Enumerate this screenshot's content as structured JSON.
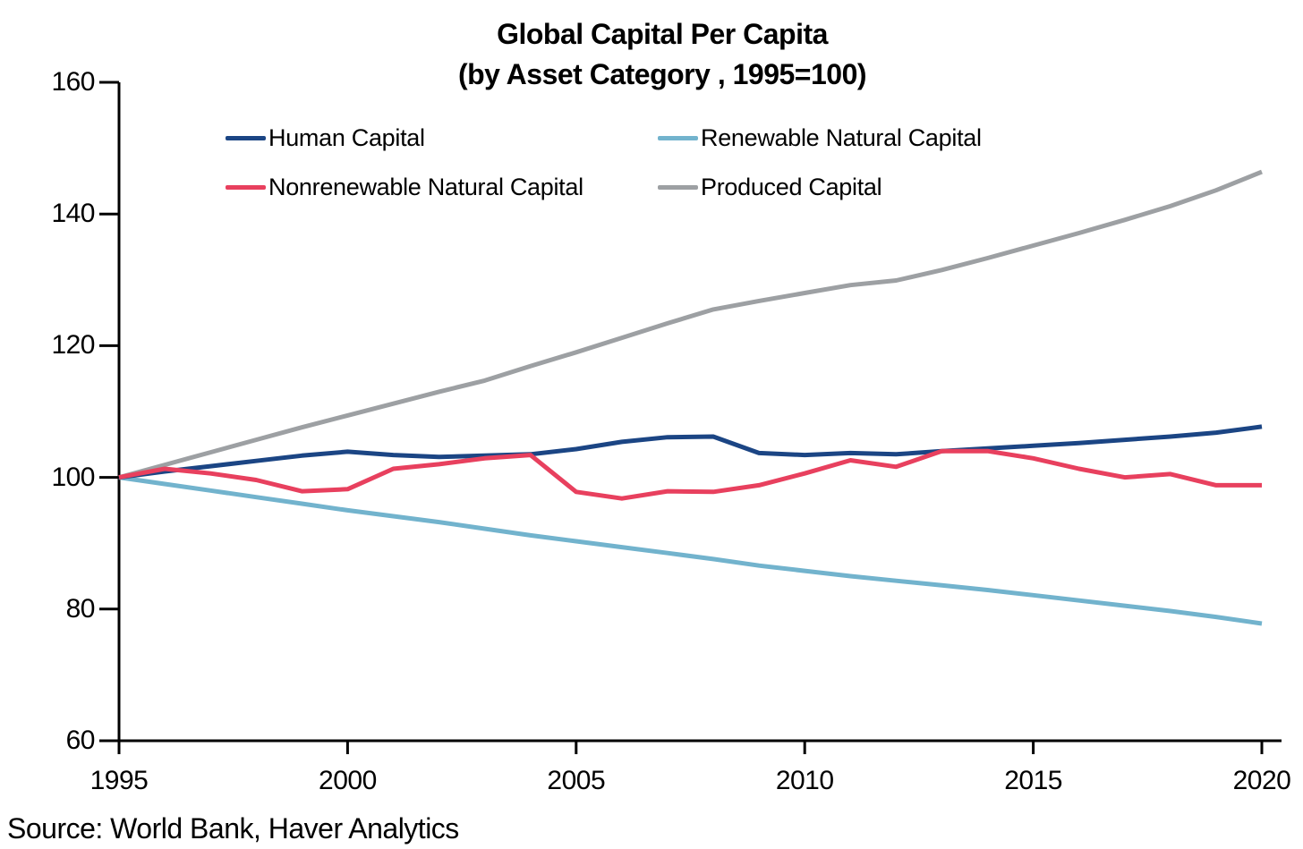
{
  "title": {
    "line1": "Global Capital Per Capita",
    "line2": "(by Asset Category , 1995=100)"
  },
  "source": "Source: World Bank, Haver Analytics",
  "chart_data": {
    "type": "line",
    "title": "Global Capital Per Capita (by Asset Category , 1995=100)",
    "xlabel": "",
    "ylabel": "",
    "xlim": [
      1995,
      2020
    ],
    "ylim": [
      60,
      160
    ],
    "x_ticks": [
      1995,
      2000,
      2005,
      2010,
      2015,
      2020
    ],
    "y_ticks": [
      60,
      80,
      100,
      120,
      140,
      160
    ],
    "grid": false,
    "legend_position": "top",
    "axis_color": "#000000",
    "x": [
      1995,
      1996,
      1997,
      1998,
      1999,
      2000,
      2001,
      2002,
      2003,
      2004,
      2005,
      2006,
      2007,
      2008,
      2009,
      2010,
      2011,
      2012,
      2013,
      2014,
      2015,
      2016,
      2017,
      2018,
      2019,
      2020
    ],
    "series": [
      {
        "name": "Human Capital",
        "color": "#1B4584",
        "values": [
          100,
          100.9,
          101.7,
          102.5,
          103.3,
          103.9,
          103.4,
          103.1,
          103.3,
          103.5,
          104.3,
          105.4,
          106.1,
          106.2,
          103.7,
          103.4,
          103.7,
          103.5,
          104.0,
          104.4,
          104.8,
          105.2,
          105.7,
          106.2,
          106.8,
          107.7
        ]
      },
      {
        "name": "Renewable Natural Capital",
        "color": "#72B3CD",
        "values": [
          100,
          99.0,
          98.0,
          97.0,
          96.0,
          95.0,
          94.1,
          93.2,
          92.2,
          91.2,
          90.3,
          89.4,
          88.5,
          87.6,
          86.6,
          85.8,
          85.0,
          84.3,
          83.6,
          82.9,
          82.1,
          81.3,
          80.5,
          79.7,
          78.8,
          77.8
        ]
      },
      {
        "name": "Nonrenewable Natural Capital",
        "color": "#E8405E",
        "values": [
          100,
          101.3,
          100.6,
          99.6,
          97.9,
          98.2,
          101.3,
          102.0,
          102.9,
          103.4,
          97.8,
          96.8,
          97.9,
          97.8,
          98.8,
          100.6,
          102.6,
          101.6,
          104.0,
          104.0,
          102.9,
          101.3,
          100.0,
          100.5,
          98.8,
          98.8
        ]
      },
      {
        "name": "Produced Capital",
        "color": "#9DA0A3",
        "values": [
          100,
          101.9,
          103.8,
          105.7,
          107.6,
          109.4,
          111.2,
          113.0,
          114.7,
          116.9,
          119.0,
          121.2,
          123.4,
          125.5,
          126.8,
          128.0,
          129.2,
          129.9,
          131.5,
          133.3,
          135.2,
          137.1,
          139.1,
          141.2,
          143.6,
          146.4
        ]
      }
    ]
  }
}
